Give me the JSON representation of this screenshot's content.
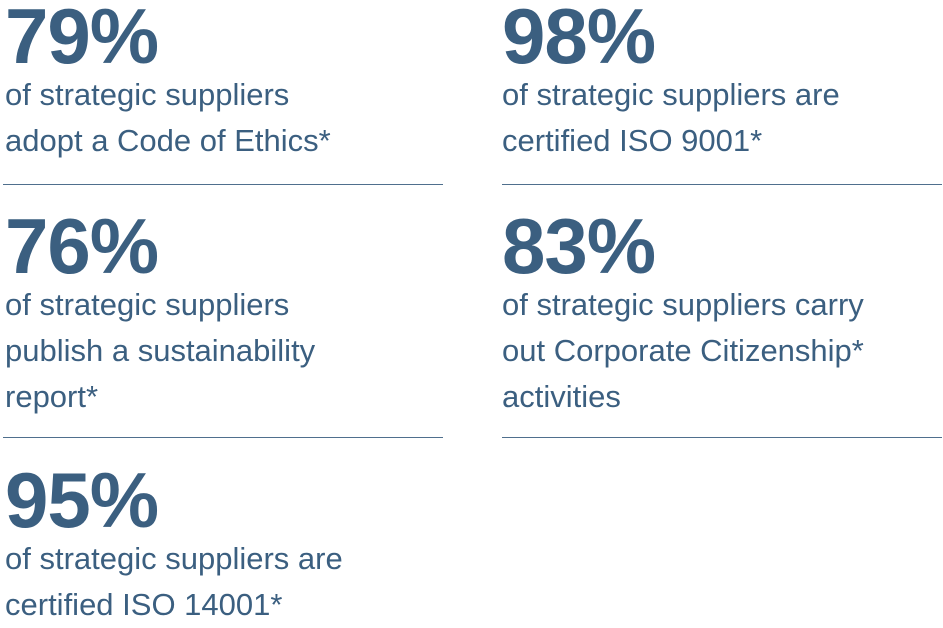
{
  "stats": [
    {
      "value": "79%",
      "lines": [
        "of strategic suppliers",
        "adopt a Code of Ethics*"
      ]
    },
    {
      "value": "98%",
      "lines": [
        "of strategic suppliers are",
        "certified ISO 9001*"
      ]
    },
    {
      "value": "76%",
      "lines": [
        "of strategic suppliers",
        "publish a sustainability",
        "report*"
      ]
    },
    {
      "value": "83%",
      "lines": [
        "of strategic suppliers carry",
        "out Corporate Citizenship*",
        "activities"
      ]
    },
    {
      "value": "95%",
      "lines": [
        "of strategic suppliers are",
        "certified ISO 14001*"
      ]
    }
  ]
}
